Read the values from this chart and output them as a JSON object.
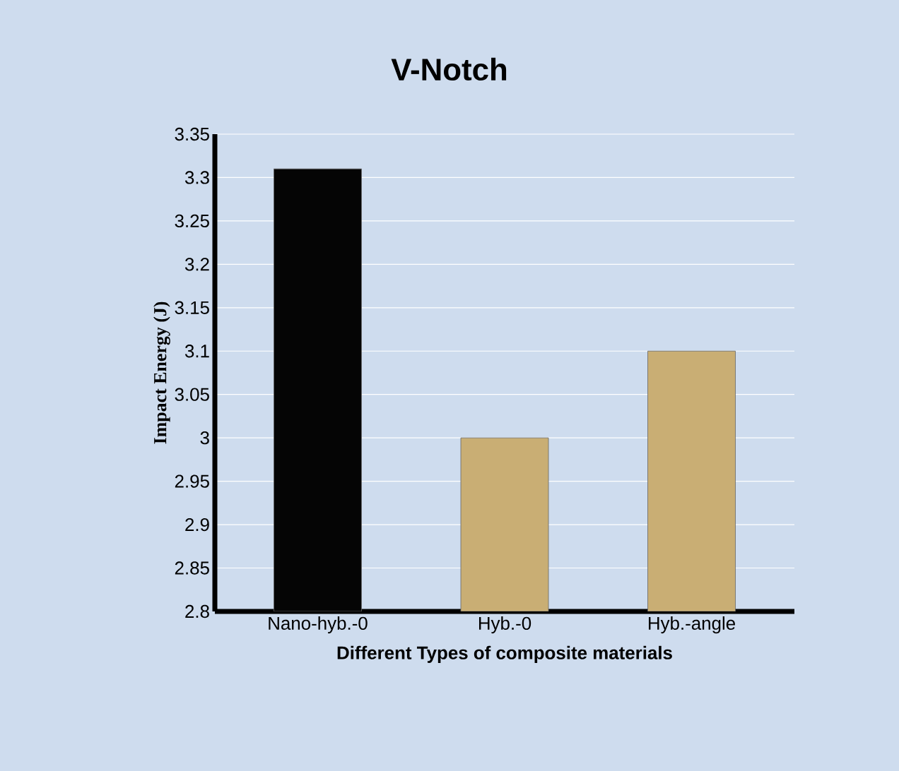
{
  "chart_data": {
    "type": "bar",
    "title": "V-Notch",
    "xlabel": "Different Types of composite materials",
    "ylabel": "Impact Energy (J)",
    "categories": [
      "Nano-hyb.-0",
      "Hyb.-0",
      "Hyb.-angle"
    ],
    "values": [
      3.31,
      3.0,
      3.1
    ],
    "colors": [
      "#050505",
      "#c9ae74",
      "#c9ae74"
    ],
    "ylim": [
      2.8,
      3.35
    ],
    "yticks": [
      2.8,
      2.85,
      2.9,
      2.95,
      3,
      3.05,
      3.1,
      3.15,
      3.2,
      3.25,
      3.3,
      3.35
    ],
    "grid": "y"
  }
}
